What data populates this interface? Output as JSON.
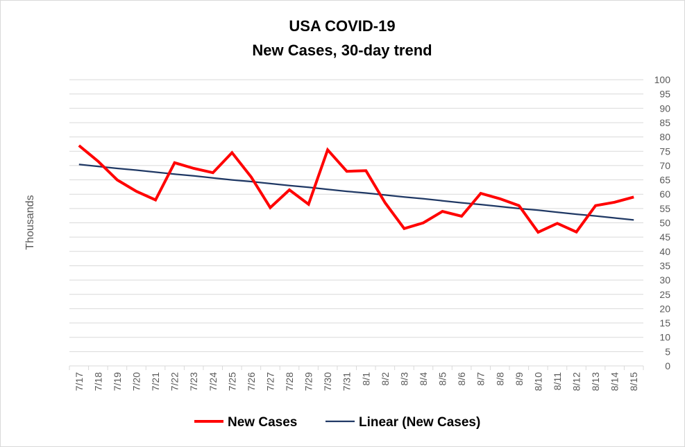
{
  "chart_data": {
    "type": "line",
    "title": "USA COVID-19",
    "subtitle": "New Cases, 30-day trend",
    "ylabel": "Thousands",
    "xlabel": "",
    "ylim": [
      0,
      100
    ],
    "y_ticks": [
      0,
      5,
      10,
      15,
      20,
      25,
      30,
      35,
      40,
      45,
      50,
      55,
      60,
      65,
      70,
      75,
      80,
      85,
      90,
      95,
      100
    ],
    "y_axis_side": "right",
    "grid": true,
    "legend_position": "bottom",
    "categories": [
      "7/17",
      "7/18",
      "7/19",
      "7/20",
      "7/21",
      "7/22",
      "7/23",
      "7/24",
      "7/25",
      "7/26",
      "7/27",
      "7/28",
      "7/29",
      "7/30",
      "7/31",
      "8/1",
      "8/2",
      "8/3",
      "8/4",
      "8/5",
      "8/6",
      "8/7",
      "8/8",
      "8/9",
      "8/10",
      "8/11",
      "8/12",
      "8/13",
      "8/14",
      "8/15"
    ],
    "series": [
      {
        "name": "New Cases",
        "color": "#ff0000",
        "values": [
          77,
          71.5,
          65,
          61,
          58,
          71,
          69,
          67.5,
          74.5,
          66,
          55.3,
          61.5,
          56.5,
          75.5,
          68,
          68.2,
          57,
          48,
          50,
          54,
          52.3,
          60.3,
          58.4,
          56,
          46.7,
          49.8,
          46.8,
          56,
          57.2,
          59
        ]
      },
      {
        "name": "Linear (New Cases)",
        "color": "#1f3864",
        "values": [
          70.4,
          69.7,
          69.0,
          68.4,
          67.7,
          67.0,
          66.4,
          65.7,
          65.0,
          64.4,
          63.7,
          63.0,
          62.4,
          61.7,
          61.0,
          60.4,
          59.7,
          59.0,
          58.4,
          57.7,
          57.0,
          56.4,
          55.7,
          55.0,
          54.4,
          53.7,
          53.0,
          52.4,
          51.7,
          51.0
        ]
      }
    ]
  }
}
